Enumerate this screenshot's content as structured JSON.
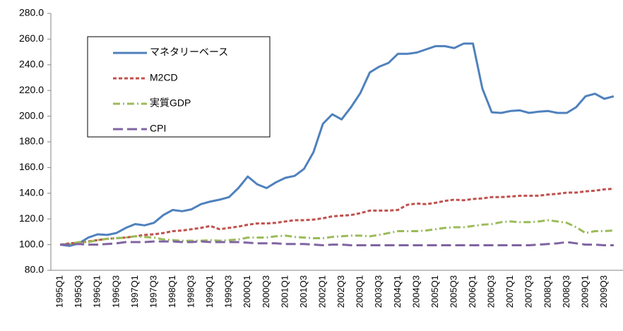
{
  "chart_data": {
    "type": "line",
    "categories": [
      "1995Q1",
      null,
      "1995Q3",
      null,
      "1996Q1",
      null,
      "1996Q3",
      null,
      "1997Q1",
      null,
      "1997Q3",
      null,
      "1998Q1",
      null,
      "1998Q3",
      null,
      "1999Q1",
      null,
      "1999Q3",
      null,
      "2000Q1",
      null,
      "2000Q3",
      null,
      "2001Q1",
      null,
      "2001Q3",
      null,
      "2002Q1",
      null,
      "2002Q3",
      null,
      "2003Q1",
      null,
      "2003Q3",
      null,
      "2004Q1",
      null,
      "2004Q3",
      null,
      "2005Q1",
      null,
      "2005Q3",
      null,
      "2006Q1",
      null,
      "2006Q3",
      null,
      "2007Q1",
      null,
      "2007Q3",
      null,
      "2008Q1",
      null,
      "2008Q3",
      null,
      "2009Q1",
      null,
      "2009Q3",
      null
    ],
    "series": [
      {
        "name": "マネタリーベース",
        "color": "#4f81bd",
        "dash": "solid",
        "values": [
          100,
          99,
          101,
          105.5,
          108,
          107.5,
          109,
          113,
          116,
          115,
          117,
          123,
          127,
          126,
          127.5,
          131.5,
          133.5,
          135,
          137,
          144,
          153,
          147,
          144,
          148.5,
          152,
          153.5,
          159,
          172,
          194,
          201.5,
          197.5,
          207,
          218,
          234,
          238.5,
          241.5,
          248.5,
          248.5,
          249.5,
          252,
          254.5,
          254.5,
          253,
          256.5,
          256.5,
          221.5,
          203,
          202.5,
          204,
          204.5,
          202.5,
          203.5,
          204,
          202.5,
          202.5,
          207,
          215.5,
          217.5,
          213.5,
          215.5
        ]
      },
      {
        "name": "M2CD",
        "color": "#c0504d",
        "dash": "dot",
        "values": [
          100,
          101,
          101.5,
          102.5,
          103.5,
          104.5,
          105,
          105.5,
          106.5,
          107.5,
          108,
          109,
          110.5,
          111,
          112,
          113,
          114.5,
          112,
          113,
          114,
          115.5,
          116.5,
          116.5,
          117,
          118,
          119,
          119,
          119.5,
          120.5,
          122,
          122.5,
          123,
          124.5,
          126.5,
          126.5,
          126.5,
          127,
          131,
          132,
          131.5,
          132.5,
          134,
          135,
          134.5,
          135.5,
          136,
          137,
          137,
          137.5,
          138,
          138,
          138,
          139,
          139.5,
          140.5,
          140.5,
          141.5,
          142,
          143,
          143.5
        ]
      },
      {
        "name": "実質GDP",
        "color": "#9bbb59",
        "dash": "dashdot",
        "values": [
          100,
          100.5,
          102,
          102,
          103.5,
          104.5,
          105,
          105.5,
          106.5,
          106,
          105.5,
          104,
          103.5,
          103,
          103,
          103,
          103.5,
          103,
          103.5,
          104,
          105.5,
          105.5,
          105.5,
          106.5,
          107,
          106,
          105.5,
          105,
          105,
          106,
          106.5,
          107,
          107,
          106.5,
          107.5,
          109,
          110.5,
          110.5,
          110.5,
          111,
          112,
          113,
          113.5,
          113.5,
          114.5,
          115.5,
          116,
          117.5,
          118,
          117.5,
          117.5,
          118,
          119,
          118,
          117,
          113.5,
          109,
          110.5,
          110.5,
          111
        ]
      },
      {
        "name": "CPI",
        "color": "#8064a2",
        "dash": "longdash",
        "values": [
          100,
          100,
          100.5,
          100,
          100,
          100.5,
          101,
          102,
          102,
          102,
          102.5,
          102.5,
          102.5,
          102,
          102,
          102.5,
          102,
          102,
          102,
          102,
          101.5,
          101,
          101,
          101,
          100.5,
          100.5,
          100.5,
          100,
          99.5,
          100,
          100,
          99.5,
          99.5,
          99.5,
          99.5,
          99.5,
          99.5,
          99.5,
          99.5,
          99.5,
          99.5,
          99.5,
          99.5,
          99.5,
          99.5,
          99.5,
          99.5,
          99.5,
          99.5,
          99.5,
          99.5,
          100,
          100.5,
          101,
          102,
          101,
          100,
          100,
          99.5,
          99.5
        ]
      }
    ],
    "ylim": [
      80,
      280
    ],
    "yticks": [
      {
        "value": 80,
        "label": "80.0"
      },
      {
        "value": 100,
        "label": "100.0"
      },
      {
        "value": 120,
        "label": "120.0"
      },
      {
        "value": 140,
        "label": "140.0"
      },
      {
        "value": 160,
        "label": "160.0"
      },
      {
        "value": 180,
        "label": "180.0"
      },
      {
        "value": 200,
        "label": "200.0"
      },
      {
        "value": 220,
        "label": "220.0"
      },
      {
        "value": 240,
        "label": "240.0"
      },
      {
        "value": 260,
        "label": "260.0"
      },
      {
        "value": 280,
        "label": "280.0"
      }
    ],
    "grid": false,
    "legend": "upper-left"
  }
}
